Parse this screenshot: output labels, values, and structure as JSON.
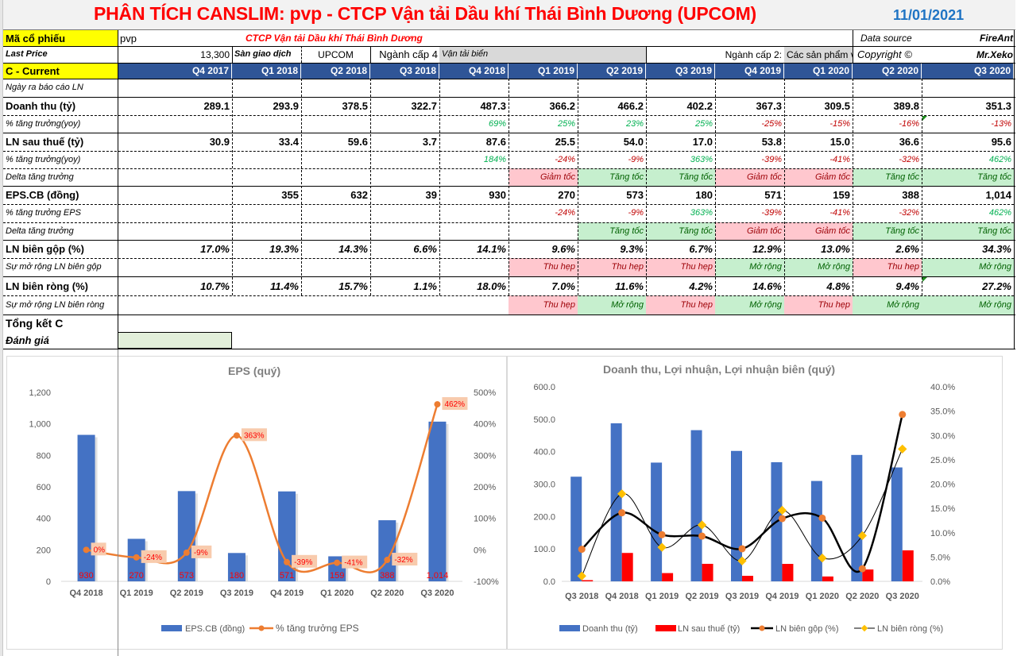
{
  "header": {
    "title": "PHÂN TÍCH CANSLIM: pvp - CTCP Vận tải Dầu khí Thái Bình Dương (UPCOM)",
    "date": "11/01/2021"
  },
  "info": {
    "ticker_label": "Mã cổ phiếu",
    "ticker": "pvp",
    "company_name": "CTCP Vận tải Dầu khí Thái Bình Dương",
    "data_source_label": "Data source",
    "data_source": "FireAnt",
    "last_price_label": "Last Price",
    "last_price": "13,300",
    "exchange_label": "Sàn giao dịch",
    "exchange": "UPCOM",
    "industry4_label": "Ngành cấp 4",
    "industry4": "Vận tải biển",
    "industry2_label": "Ngành cấp 2:",
    "industry2": "Các sản phẩm v",
    "copyright_label": "Copyright ©",
    "copyright": "Mr.Xeko"
  },
  "table": {
    "section_label": "C - Current",
    "quarters": [
      "Q4 2017",
      "Q1 2018",
      "Q2 2018",
      "Q3 2018",
      "Q4 2018",
      "Q1 2019",
      "Q2 2019",
      "Q3 2019",
      "Q4 2019",
      "Q1 2020",
      "Q2 2020",
      "Q3 2020"
    ],
    "rows": [
      {
        "label": "Ngày ra báo cáo LN",
        "kind": "sub",
        "values": [
          "",
          "",
          "",
          "",
          "",
          "",
          "",
          "",
          "",
          "",
          "",
          ""
        ]
      },
      {
        "label": "Doanh thu (tỷ)",
        "kind": "big",
        "values": [
          "289.1",
          "293.9",
          "378.5",
          "322.7",
          "487.3",
          "366.2",
          "466.2",
          "402.2",
          "367.3",
          "309.5",
          "389.8",
          "351.3"
        ]
      },
      {
        "label": "% tăng trưởng(yoy)",
        "kind": "sub",
        "values": [
          "",
          "",
          "",
          "",
          "69%",
          "25%",
          "23%",
          "25%",
          "-25%",
          "-15%",
          "-16%",
          "-13%"
        ]
      },
      {
        "label": "LN sau thuế (tỷ)",
        "kind": "big",
        "values": [
          "30.9",
          "33.4",
          "59.6",
          "3.7",
          "87.6",
          "25.5",
          "54.0",
          "17.0",
          "53.8",
          "15.0",
          "36.6",
          "95.6"
        ]
      },
      {
        "label": "% tăng trưởng(yoy)",
        "kind": "sub",
        "values": [
          "",
          "",
          "",
          "",
          "184%",
          "-24%",
          "-9%",
          "363%",
          "-39%",
          "-41%",
          "-32%",
          "462%"
        ]
      },
      {
        "label": "Delta tăng trưởng",
        "kind": "sub",
        "values": [
          "",
          "",
          "",
          "",
          "",
          "Giảm tốc",
          "Tăng tốc",
          "Tăng tốc",
          "Giảm tốc",
          "Giảm tốc",
          "Tăng tốc",
          "Tăng tốc"
        ]
      },
      {
        "label": "EPS.CB (đồng)",
        "kind": "big",
        "values": [
          "",
          "355",
          "632",
          "39",
          "930",
          "270",
          "573",
          "180",
          "571",
          "159",
          "388",
          "1,014"
        ]
      },
      {
        "label": "% tăng trưởng EPS",
        "kind": "sub",
        "values": [
          "",
          "",
          "",
          "",
          "",
          "-24%",
          "-9%",
          "363%",
          "-39%",
          "-41%",
          "-32%",
          "462%"
        ]
      },
      {
        "label": "Delta tăng trưởng",
        "kind": "sub",
        "values": [
          "",
          "",
          "",
          "",
          "",
          "",
          "Tăng tốc",
          "Tăng tốc",
          "Giảm tốc",
          "Giảm tốc",
          "Tăng tốc",
          "Tăng tốc"
        ]
      },
      {
        "label": "LN biên gộp (%)",
        "kind": "big",
        "values": [
          "17.0%",
          "19.3%",
          "14.3%",
          "6.6%",
          "14.1%",
          "9.6%",
          "9.3%",
          "6.7%",
          "12.9%",
          "13.0%",
          "2.6%",
          "34.3%"
        ]
      },
      {
        "label": "Sự mở rộng LN biên gộp",
        "kind": "sub",
        "values": [
          "",
          "",
          "",
          "",
          "",
          "Thu hẹp",
          "Thu hẹp",
          "Thu hẹp",
          "Mở rộng",
          "Mở rộng",
          "Thu hẹp",
          "Mở rộng"
        ]
      },
      {
        "label": "LN biên ròng (%)",
        "kind": "big",
        "values": [
          "10.7%",
          "11.4%",
          "15.7%",
          "1.1%",
          "18.0%",
          "7.0%",
          "11.6%",
          "4.2%",
          "14.6%",
          "4.8%",
          "9.4%",
          "27.2%"
        ]
      },
      {
        "label": "Sự mở rộng LN biên ròng",
        "kind": "sub",
        "values": [
          "",
          "",
          "",
          "",
          "",
          "Thu hẹp",
          "Mở rộng",
          "Thu hẹp",
          "Mở rộng",
          "Thu hẹp",
          "Mở rộng",
          "Mở rộng"
        ]
      }
    ],
    "summary_label": "Tổng kết C",
    "rating_label": "Đánh giá",
    "rating_value": ""
  },
  "colors": {
    "bar_blue": "#4472c4",
    "line_orange": "#ed7d31",
    "bar_red": "#ff0000",
    "marker_yellow": "#ffc000",
    "header_navy": "#2f5597",
    "pos_bg": "#c6efce",
    "neg_bg": "#ffc7ce"
  },
  "chart_data": [
    {
      "type": "bar",
      "title": "EPS  (quý)",
      "categories": [
        "Q4 2018",
        "Q1 2019",
        "Q2 2019",
        "Q3 2019",
        "Q4 2019",
        "Q1 2020",
        "Q2 2020",
        "Q3 2020"
      ],
      "series": [
        {
          "name": "EPS.CB (đồng)",
          "type": "bar",
          "axis": "left",
          "values": [
            930,
            270,
            573,
            180,
            571,
            159,
            388,
            1014
          ],
          "labels": [
            "930",
            "270",
            "573",
            "180",
            "571",
            "159",
            "388",
            "1,014"
          ]
        },
        {
          "name": "% tăng trưởng EPS",
          "type": "line",
          "axis": "right",
          "values": [
            0,
            -24,
            -9,
            363,
            -39,
            -41,
            -32,
            462
          ],
          "labels": [
            "0%",
            "-24%",
            "-9%",
            "363%",
            "-39%",
            "-41%",
            "-32%",
            "462%"
          ]
        }
      ],
      "y_left": {
        "min": 0,
        "max": 1200,
        "ticks": [
          "0",
          "200",
          "400",
          "600",
          "800",
          "1,000",
          "1,200"
        ]
      },
      "y_right": {
        "min": -100,
        "max": 500,
        "ticks": [
          "-100%",
          "0%",
          "100%",
          "200%",
          "300%",
          "400%",
          "500%"
        ]
      },
      "legend": "bottom",
      "grid": false
    },
    {
      "type": "bar",
      "title": "Doanh thu, Lợi nhuận, Lợi nhuận biên (quý)",
      "categories": [
        "Q3 2018",
        "Q4 2018",
        "Q1 2019",
        "Q2 2019",
        "Q3 2019",
        "Q4 2019",
        "Q1 2020",
        "Q2 2020",
        "Q3 2020"
      ],
      "series": [
        {
          "name": "Doanh thu (tỷ)",
          "type": "bar",
          "axis": "left",
          "values": [
            322.7,
            487.3,
            366.2,
            466.2,
            402.2,
            367.3,
            309.5,
            389.8,
            351.3
          ]
        },
        {
          "name": "LN sau thuế (tỷ)",
          "type": "bar",
          "axis": "left",
          "values": [
            3.7,
            87.6,
            25.5,
            54.0,
            17.0,
            53.8,
            15.0,
            36.6,
            95.6
          ]
        },
        {
          "name": "LN biên gộp (%)",
          "type": "line",
          "axis": "right",
          "values": [
            6.6,
            14.1,
            9.6,
            9.3,
            6.7,
            12.9,
            13.0,
            2.6,
            34.3
          ]
        },
        {
          "name": "LN biên ròng (%)",
          "type": "line",
          "axis": "right",
          "values": [
            1.1,
            18.0,
            7.0,
            11.6,
            4.2,
            14.6,
            4.8,
            9.4,
            27.2
          ]
        }
      ],
      "y_left": {
        "min": 0,
        "max": 600,
        "ticks": [
          "0.0",
          "100.0",
          "200.0",
          "300.0",
          "400.0",
          "500.0",
          "600.0"
        ]
      },
      "y_right": {
        "min": 0,
        "max": 40,
        "ticks": [
          "0.0%",
          "5.0%",
          "10.0%",
          "15.0%",
          "20.0%",
          "25.0%",
          "30.0%",
          "35.0%",
          "40.0%"
        ]
      },
      "legend": "bottom",
      "grid": false
    }
  ]
}
